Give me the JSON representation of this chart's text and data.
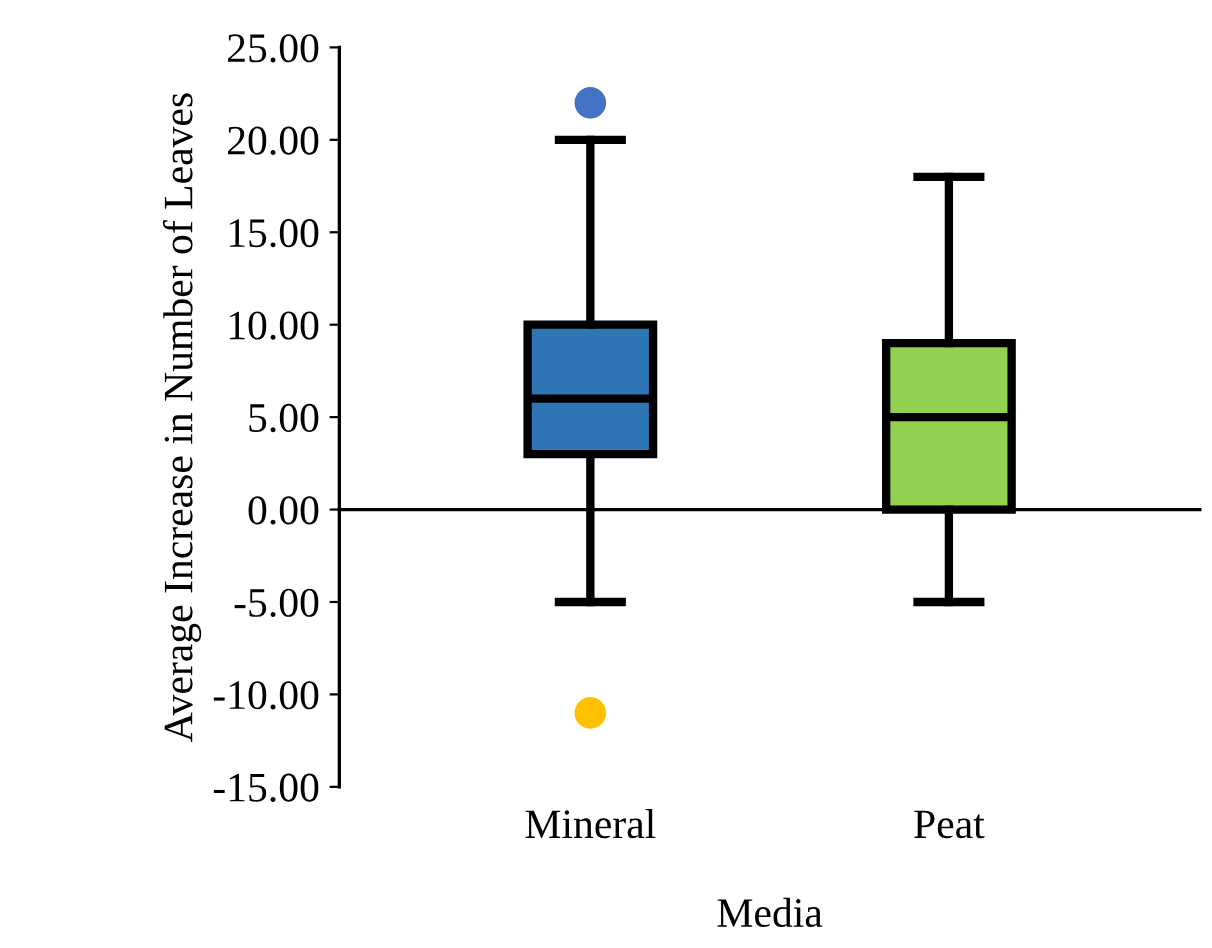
{
  "chart_data": {
    "type": "box",
    "xlabel": "Media",
    "ylabel": "Average Increase in Number of Leaves",
    "categories": [
      "Mineral",
      "Peat"
    ],
    "colors": [
      "#2e75b6",
      "#92d050"
    ],
    "boxes": [
      {
        "low": -5,
        "q1": 3,
        "median": 6,
        "q3": 10,
        "high": 20
      },
      {
        "low": -5,
        "q1": 0,
        "median": 5,
        "q3": 9,
        "high": 18
      }
    ],
    "series": [
      {
        "type": "scatter",
        "x": [
          "Mineral",
          "Mineral"
        ],
        "values": [
          22,
          -11
        ],
        "colors": [
          "#4472c4",
          "#ffc000"
        ]
      }
    ],
    "ylim": [
      -15,
      25
    ],
    "yticks": [
      {
        "value": -15,
        "label": "-15.00"
      },
      {
        "value": -10,
        "label": "-10.00"
      },
      {
        "value": -5,
        "label": "-5.00"
      },
      {
        "value": 0,
        "label": "0.00"
      },
      {
        "value": 5,
        "label": "5.00"
      },
      {
        "value": 10,
        "label": "10.00"
      },
      {
        "value": 15,
        "label": "15.00"
      },
      {
        "value": 20,
        "label": "20.00"
      },
      {
        "value": 25,
        "label": "25.00"
      }
    ],
    "legend": false
  }
}
